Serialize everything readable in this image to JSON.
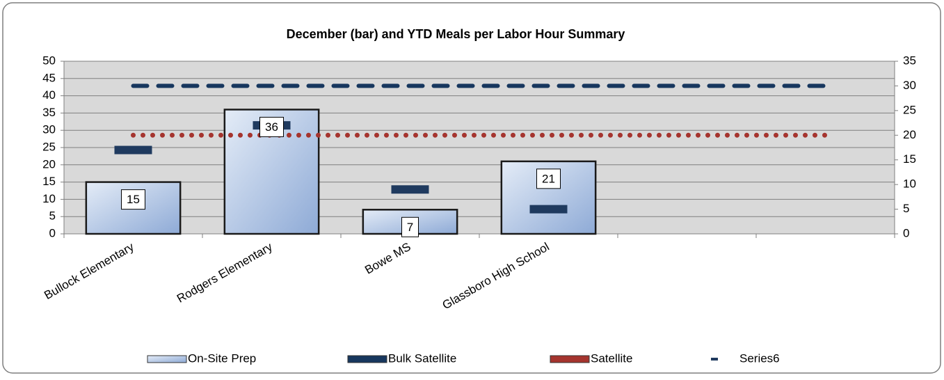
{
  "chart_data": {
    "type": "bar",
    "title": "December (bar) and YTD Meals per Labor Hour Summary",
    "categories": [
      "Bullock Elementary",
      "Rodgers Elementary",
      "Bowe MS",
      "Glassboro High School",
      null,
      null
    ],
    "series": [
      {
        "name": "On-Site Prep",
        "type": "bar",
        "color": "#b8cce4",
        "values": [
          15,
          36,
          7,
          21,
          null,
          null
        ]
      },
      {
        "name": "Bulk Satellite",
        "type": "line",
        "dash": "dashed",
        "color": "#17375e",
        "axis": "y2",
        "values": [
          30,
          30,
          30,
          30,
          30,
          30
        ]
      },
      {
        "name": "Satellite",
        "type": "line",
        "dash": "dotted",
        "color": "#a5342e",
        "axis": "y2",
        "values": [
          20,
          20,
          20,
          20,
          20,
          20
        ]
      },
      {
        "name": "Series6",
        "type": "marker",
        "color": "#1f3a5f",
        "axis": "y2",
        "values": [
          17,
          22,
          9,
          5,
          null,
          null
        ]
      }
    ],
    "ylim": [
      0,
      50
    ],
    "yticks": [
      0,
      5,
      10,
      15,
      20,
      25,
      30,
      35,
      40,
      45,
      50
    ],
    "y2lim": [
      0,
      35
    ],
    "y2ticks": [
      0,
      5,
      10,
      15,
      20,
      25,
      30,
      35
    ],
    "grid": true,
    "legend": "bottom"
  }
}
